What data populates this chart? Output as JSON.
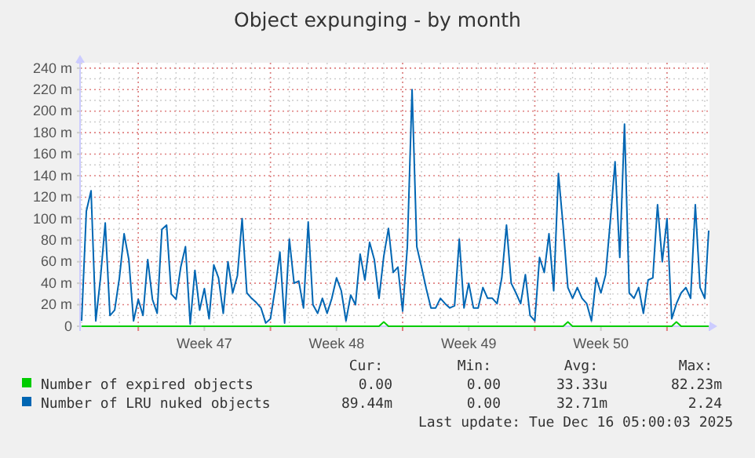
{
  "chart_data": {
    "type": "line",
    "title": "Object expunging - by month",
    "x": [
      "2025-11-13T00:00",
      "2025-11-13T06:00",
      "2025-11-13T12:00",
      "2025-11-13T18:00",
      "2025-11-14T00:00",
      "2025-11-14T06:00",
      "2025-11-14T12:00",
      "2025-11-14T18:00",
      "2025-11-15T00:00",
      "2025-11-15T06:00",
      "2025-11-15T12:00",
      "2025-11-15T18:00",
      "2025-11-16T00:00",
      "2025-11-16T06:00",
      "2025-11-16T12:00",
      "2025-11-16T18:00",
      "2025-11-17T00:00",
      "2025-11-17T06:00",
      "2025-11-17T12:00",
      "2025-11-17T18:00",
      "2025-11-18T00:00",
      "2025-11-18T06:00",
      "2025-11-18T12:00",
      "2025-11-18T18:00",
      "2025-11-19T00:00",
      "2025-11-19T06:00",
      "2025-11-19T12:00",
      "2025-11-19T18:00",
      "2025-11-20T00:00",
      "2025-11-20T06:00",
      "2025-11-20T12:00",
      "2025-11-20T18:00",
      "2025-11-21T00:00",
      "2025-11-21T06:00",
      "2025-11-21T12:00",
      "2025-11-21T18:00",
      "2025-11-22T00:00",
      "2025-11-22T06:00",
      "2025-11-22T12:00",
      "2025-11-22T18:00",
      "2025-11-23T00:00",
      "2025-11-23T06:00",
      "2025-11-23T12:00",
      "2025-11-23T18:00",
      "2025-11-24T00:00",
      "2025-11-24T06:00",
      "2025-11-24T12:00",
      "2025-11-24T18:00",
      "2025-11-25T00:00",
      "2025-11-25T06:00",
      "2025-11-25T12:00",
      "2025-11-25T18:00",
      "2025-11-26T00:00",
      "2025-11-26T06:00",
      "2025-11-26T12:00",
      "2025-11-26T18:00",
      "2025-11-27T00:00",
      "2025-11-27T06:00",
      "2025-11-27T12:00",
      "2025-11-27T18:00",
      "2025-11-28T00:00",
      "2025-11-28T06:00",
      "2025-11-28T12:00",
      "2025-11-28T18:00",
      "2025-11-29T00:00",
      "2025-11-29T06:00",
      "2025-11-29T12:00",
      "2025-11-29T18:00",
      "2025-11-30T00:00",
      "2025-11-30T06:00",
      "2025-11-30T12:00",
      "2025-11-30T18:00",
      "2025-12-01T00:00",
      "2025-12-01T06:00",
      "2025-12-01T12:00",
      "2025-12-01T18:00",
      "2025-12-02T00:00",
      "2025-12-02T06:00",
      "2025-12-02T12:00",
      "2025-12-02T18:00",
      "2025-12-03T00:00",
      "2025-12-03T06:00",
      "2025-12-03T12:00",
      "2025-12-03T18:00",
      "2025-12-04T00:00",
      "2025-12-04T06:00",
      "2025-12-04T12:00",
      "2025-12-04T18:00",
      "2025-12-05T00:00",
      "2025-12-05T06:00",
      "2025-12-05T12:00",
      "2025-12-05T18:00",
      "2025-12-06T00:00",
      "2025-12-06T06:00",
      "2025-12-06T12:00",
      "2025-12-06T18:00",
      "2025-12-07T00:00",
      "2025-12-07T06:00",
      "2025-12-07T12:00",
      "2025-12-07T18:00",
      "2025-12-08T00:00",
      "2025-12-08T06:00",
      "2025-12-08T12:00",
      "2025-12-08T18:00",
      "2025-12-09T00:00",
      "2025-12-09T06:00",
      "2025-12-09T12:00",
      "2025-12-09T18:00",
      "2025-12-10T00:00",
      "2025-12-10T06:00",
      "2025-12-10T12:00",
      "2025-12-10T18:00",
      "2025-12-11T00:00",
      "2025-12-11T06:00",
      "2025-12-11T12:00",
      "2025-12-11T18:00",
      "2025-12-12T00:00",
      "2025-12-12T06:00",
      "2025-12-12T12:00",
      "2025-12-12T18:00",
      "2025-12-13T00:00",
      "2025-12-13T06:00",
      "2025-12-13T12:00",
      "2025-12-13T18:00",
      "2025-12-14T00:00",
      "2025-12-14T06:00",
      "2025-12-14T12:00",
      "2025-12-14T18:00",
      "2025-12-15T00:00",
      "2025-12-15T06:00",
      "2025-12-15T12:00",
      "2025-12-15T18:00",
      "2025-12-16T00:00",
      "2025-12-16T05:00"
    ],
    "series": [
      {
        "name": "Number of expired objects",
        "color": "#00cc00",
        "x": [
          "2025-11-13T00:00",
          "2025-11-28T18:00",
          "2025-11-29T00:00",
          "2025-11-29T06:00",
          "2025-12-08T12:00",
          "2025-12-08T18:00",
          "2025-12-09T00:00",
          "2025-12-14T06:00",
          "2025-12-14T12:00",
          "2025-12-14T18:00",
          "2025-12-16T05:00"
        ],
        "values": [
          0,
          0,
          4,
          0,
          0,
          4,
          0,
          0,
          4,
          0,
          0
        ]
      },
      {
        "name": "Number of LRU nuked objects",
        "color": "#0066b3",
        "values": [
          5,
          107,
          126,
          5,
          45,
          96,
          10,
          15,
          45,
          86,
          62,
          5,
          25,
          10,
          62,
          25,
          12,
          90,
          94,
          30,
          25,
          55,
          74,
          2,
          52,
          15,
          35,
          7,
          57,
          45,
          12,
          60,
          31,
          47,
          100,
          31,
          26,
          22,
          17,
          3,
          7,
          35,
          69,
          3,
          81,
          40,
          42,
          17,
          97,
          20,
          12,
          26,
          12,
          26,
          45,
          33,
          5,
          29,
          20,
          67,
          43,
          78,
          62,
          26,
          65,
          91,
          50,
          55,
          14,
          74,
          220,
          74,
          55,
          35,
          17,
          17,
          26,
          21,
          17,
          19,
          81,
          17,
          40,
          17,
          17,
          36,
          26,
          26,
          21,
          45,
          94,
          40,
          31,
          21,
          48,
          10,
          5,
          64,
          50,
          86,
          33,
          142,
          93,
          36,
          26,
          36,
          26,
          21,
          5,
          45,
          31,
          48,
          98,
          153,
          64,
          188,
          31,
          26,
          36,
          12,
          43,
          45,
          113,
          60,
          100,
          7,
          21,
          31,
          36,
          26,
          113,
          36,
          26,
          89
        ]
      }
    ],
    "xlim": [
      "2025-11-12T22:00",
      "2025-12-16T06:00"
    ],
    "xticks": [
      {
        "value": "2025-11-16T00:00",
        "label": null
      },
      {
        "value": "2025-11-19T12:00",
        "label": "Week 47"
      },
      {
        "value": "2025-11-23T00:00",
        "label": null
      },
      {
        "value": "2025-11-26T12:00",
        "label": "Week 48"
      },
      {
        "value": "2025-11-30T00:00",
        "label": null
      },
      {
        "value": "2025-12-03T12:00",
        "label": "Week 49"
      },
      {
        "value": "2025-12-07T00:00",
        "label": null
      },
      {
        "value": "2025-12-10T12:00",
        "label": "Week 50"
      },
      {
        "value": "2025-12-14T00:00",
        "label": null
      }
    ],
    "ylim": [
      0,
      245
    ],
    "yticks": [
      0,
      {
        "value": 20,
        "label": "20 m"
      },
      {
        "value": 40,
        "label": "40 m"
      },
      {
        "value": 60,
        "label": "60 m"
      },
      {
        "value": 80,
        "label": "80 m"
      },
      {
        "value": 100,
        "label": "100 m"
      },
      {
        "value": 120,
        "label": "120 m"
      },
      {
        "value": 140,
        "label": "140 m"
      },
      {
        "value": 160,
        "label": "160 m"
      },
      {
        "value": 180,
        "label": "180 m"
      },
      {
        "value": 200,
        "label": "200 m"
      },
      {
        "value": 220,
        "label": "220 m"
      },
      {
        "value": 240,
        "label": "240 m"
      }
    ],
    "grid": true,
    "legend": "bottom",
    "annotations": [
      "Cur:",
      "Min:",
      "Avg:",
      "Max:",
      "0.00",
      "0.00",
      "33.33u",
      "82.23m",
      "89.44m",
      "0.00",
      "32.71m",
      "2.24",
      "Last update: Tue Dec 16 05:00:03 2025"
    ]
  }
}
